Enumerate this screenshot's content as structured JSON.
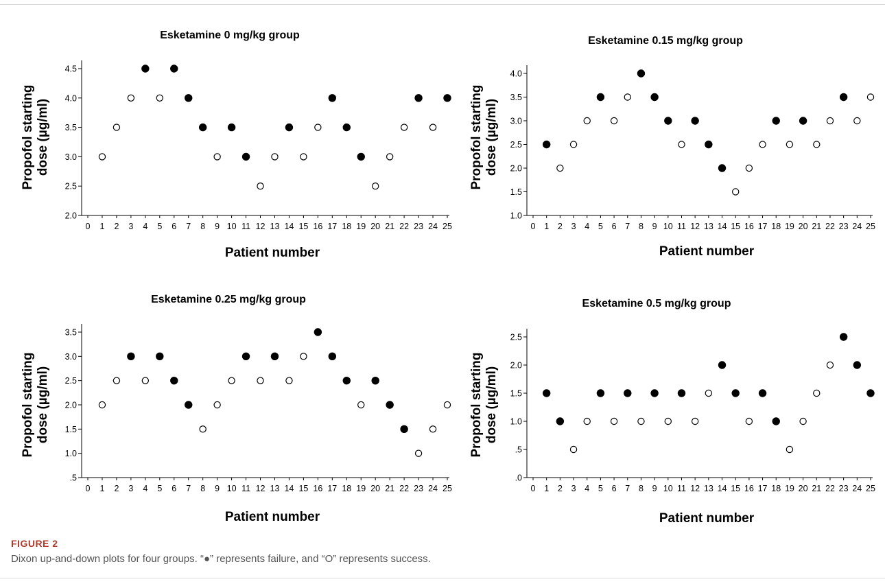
{
  "figure": {
    "label": "FIGURE 2",
    "caption": "Dixon up-and-down plots for four groups. “●” represents failure, and “O” represents success."
  },
  "chart_data": [
    {
      "type": "scatter",
      "title": "Esketamine 0 mg/kg group",
      "xlabel": "Patient number",
      "ylabel": [
        "Propofol starting",
        "dose (µg/ml)"
      ],
      "xlim": [
        0,
        25
      ],
      "ylim": [
        2.0,
        4.5
      ],
      "yticks": [
        "2.0",
        "2.5",
        "3.0",
        "3.5",
        "4.0",
        "4.5"
      ],
      "ytick_values": [
        2.0,
        2.5,
        3.0,
        3.5,
        4.0,
        4.5
      ],
      "xticks": [
        "0",
        "1",
        "2",
        "3",
        "4",
        "5",
        "6",
        "7",
        "8",
        "9",
        "10",
        "11",
        "12",
        "13",
        "14",
        "15",
        "16",
        "17",
        "18",
        "19",
        "20",
        "21",
        "22",
        "23",
        "24",
        "25"
      ],
      "x": [
        1,
        2,
        3,
        4,
        5,
        6,
        7,
        8,
        9,
        10,
        11,
        12,
        13,
        14,
        15,
        16,
        17,
        18,
        19,
        20,
        21,
        22,
        23,
        24,
        25
      ],
      "y": [
        3.0,
        3.5,
        4.0,
        4.5,
        4.0,
        4.5,
        4.0,
        3.5,
        3.0,
        3.5,
        3.0,
        2.5,
        3.0,
        3.5,
        3.0,
        3.5,
        4.0,
        3.5,
        3.0,
        2.5,
        3.0,
        3.5,
        4.0,
        3.5,
        4.0
      ],
      "outcome": [
        "success",
        "success",
        "success",
        "failure",
        "success",
        "failure",
        "failure",
        "failure",
        "success",
        "failure",
        "failure",
        "success",
        "success",
        "failure",
        "success",
        "success",
        "failure",
        "failure",
        "failure",
        "success",
        "success",
        "success",
        "failure",
        "success",
        "failure"
      ],
      "legend": {
        "failure": "●",
        "success": "O"
      }
    },
    {
      "type": "scatter",
      "title": "Esketamine 0.15 mg/kg group",
      "xlabel": "Patient number",
      "ylabel": [
        "Propofol starting",
        "dose (µg/ml)"
      ],
      "xlim": [
        0,
        25
      ],
      "ylim": [
        1.0,
        4.0
      ],
      "yticks": [
        "1.0",
        "1.5",
        "2.0",
        "2.5",
        "3.0",
        "3.5",
        "4.0"
      ],
      "ytick_values": [
        1.0,
        1.5,
        2.0,
        2.5,
        3.0,
        3.5,
        4.0
      ],
      "xticks": [
        "0",
        "1",
        "2",
        "3",
        "4",
        "5",
        "6",
        "7",
        "8",
        "9",
        "10",
        "11",
        "12",
        "13",
        "14",
        "15",
        "16",
        "17",
        "18",
        "19",
        "20",
        "21",
        "22",
        "23",
        "24",
        "25"
      ],
      "x": [
        1,
        2,
        3,
        4,
        5,
        6,
        7,
        8,
        9,
        10,
        11,
        12,
        13,
        14,
        15,
        16,
        17,
        18,
        19,
        20,
        21,
        22,
        23,
        24,
        25
      ],
      "y": [
        2.5,
        2.0,
        2.5,
        3.0,
        3.5,
        3.0,
        3.5,
        4.0,
        3.5,
        3.0,
        2.5,
        3.0,
        2.5,
        2.0,
        1.5,
        2.0,
        2.5,
        3.0,
        2.5,
        3.0,
        2.5,
        3.0,
        3.5,
        3.0,
        3.5
      ],
      "outcome": [
        "failure",
        "success",
        "success",
        "success",
        "failure",
        "success",
        "success",
        "failure",
        "failure",
        "failure",
        "success",
        "failure",
        "failure",
        "failure",
        "success",
        "success",
        "success",
        "failure",
        "success",
        "failure",
        "success",
        "success",
        "failure",
        "success",
        "success"
      ],
      "legend": {
        "failure": "●",
        "success": "O"
      }
    },
    {
      "type": "scatter",
      "title": "Esketamine 0.25 mg/kg group",
      "xlabel": "Patient number",
      "ylabel": [
        "Propofol starting",
        "dose (µg/ml)"
      ],
      "xlim": [
        0,
        25
      ],
      "ylim": [
        0.5,
        3.5
      ],
      "yticks": [
        ".5",
        "1.0",
        "1.5",
        "2.0",
        "2.5",
        "3.0",
        "3.5"
      ],
      "ytick_values": [
        0.5,
        1.0,
        1.5,
        2.0,
        2.5,
        3.0,
        3.5
      ],
      "xticks": [
        "0",
        "1",
        "2",
        "3",
        "4",
        "5",
        "6",
        "7",
        "8",
        "9",
        "10",
        "11",
        "12",
        "13",
        "14",
        "15",
        "16",
        "17",
        "18",
        "19",
        "20",
        "21",
        "22",
        "23",
        "24",
        "25"
      ],
      "x": [
        1,
        2,
        3,
        4,
        5,
        6,
        7,
        8,
        9,
        10,
        11,
        12,
        13,
        14,
        15,
        16,
        17,
        18,
        19,
        20,
        21,
        22,
        23,
        24,
        25
      ],
      "y": [
        2.0,
        2.5,
        3.0,
        2.5,
        3.0,
        2.5,
        2.0,
        1.5,
        2.0,
        2.5,
        3.0,
        2.5,
        3.0,
        2.5,
        3.0,
        3.5,
        3.0,
        2.5,
        2.0,
        2.5,
        2.0,
        1.5,
        1.0,
        1.5,
        2.0
      ],
      "outcome": [
        "success",
        "success",
        "failure",
        "success",
        "failure",
        "failure",
        "failure",
        "success",
        "success",
        "success",
        "failure",
        "success",
        "failure",
        "success",
        "success",
        "failure",
        "failure",
        "failure",
        "success",
        "failure",
        "failure",
        "failure",
        "success",
        "success",
        "success"
      ],
      "legend": {
        "failure": "●",
        "success": "O"
      }
    },
    {
      "type": "scatter",
      "title": "Esketamine 0.5 mg/kg group",
      "xlabel": "Patient number",
      "ylabel": [
        "Propofol starting",
        "dose (µg/ml)"
      ],
      "xlim": [
        0,
        25
      ],
      "ylim": [
        0.0,
        2.5
      ],
      "yticks": [
        ".0",
        ".5",
        "1.0",
        "1.5",
        "2.0",
        "2.5"
      ],
      "ytick_values": [
        0.0,
        0.5,
        1.0,
        1.5,
        2.0,
        2.5
      ],
      "xticks": [
        "0",
        "1",
        "2",
        "3",
        "4",
        "5",
        "6",
        "7",
        "8",
        "9",
        "10",
        "11",
        "12",
        "13",
        "14",
        "15",
        "16",
        "17",
        "18",
        "19",
        "20",
        "21",
        "22",
        "23",
        "24",
        "25"
      ],
      "x": [
        1,
        2,
        3,
        4,
        5,
        6,
        7,
        8,
        9,
        10,
        11,
        12,
        13,
        14,
        15,
        16,
        17,
        18,
        19,
        20,
        21,
        22,
        23,
        24,
        25
      ],
      "y": [
        1.5,
        1.0,
        0.5,
        1.0,
        1.5,
        1.0,
        1.5,
        1.0,
        1.5,
        1.0,
        1.5,
        1.0,
        1.5,
        2.0,
        1.5,
        1.0,
        1.5,
        1.0,
        0.5,
        1.0,
        1.5,
        2.0,
        2.5,
        2.0,
        1.5
      ],
      "outcome": [
        "failure",
        "failure",
        "success",
        "success",
        "failure",
        "success",
        "failure",
        "success",
        "failure",
        "success",
        "failure",
        "success",
        "success",
        "failure",
        "failure",
        "success",
        "failure",
        "failure",
        "success",
        "success",
        "success",
        "success",
        "failure",
        "failure",
        "failure"
      ],
      "legend": {
        "failure": "●",
        "success": "O"
      }
    }
  ]
}
